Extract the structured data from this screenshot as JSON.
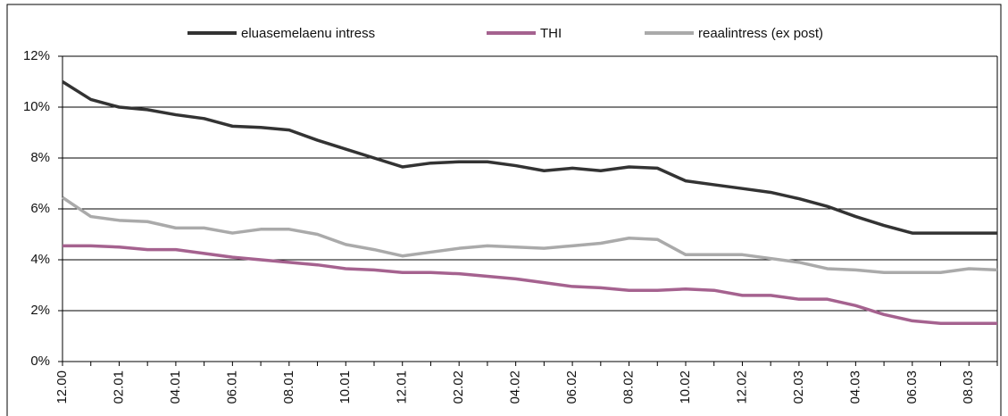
{
  "chart_data": {
    "type": "line",
    "categories": [
      "12.00",
      null,
      "02.01",
      null,
      "04.01",
      null,
      "06.01",
      null,
      "08.01",
      null,
      "10.01",
      null,
      "12.01",
      null,
      "02.02",
      null,
      "04.02",
      null,
      "06.02",
      null,
      "08.02",
      null,
      "10.02",
      null,
      "12.02",
      null,
      "02.03",
      null,
      "04.03",
      null,
      "06.03",
      null,
      "08.03",
      null
    ],
    "series": [
      {
        "name": "eluasemelaenu intress",
        "color": "#333333",
        "values": [
          11.0,
          10.3,
          10.0,
          9.9,
          9.7,
          9.55,
          9.25,
          9.2,
          9.1,
          8.7,
          8.35,
          8.0,
          7.65,
          7.8,
          7.85,
          7.85,
          7.7,
          7.5,
          7.6,
          7.5,
          7.65,
          7.6,
          7.1,
          6.95,
          6.8,
          6.65,
          6.4,
          6.1,
          5.7,
          5.35,
          5.05,
          5.05,
          5.05,
          5.05
        ]
      },
      {
        "name": "THI",
        "color": "#a5628f",
        "values": [
          4.55,
          4.55,
          4.5,
          4.4,
          4.4,
          4.25,
          4.1,
          4.0,
          3.9,
          3.8,
          3.65,
          3.6,
          3.5,
          3.5,
          3.45,
          3.35,
          3.25,
          3.1,
          2.95,
          2.9,
          2.8,
          2.8,
          2.85,
          2.8,
          2.6,
          2.6,
          2.45,
          2.45,
          2.2,
          1.85,
          1.6,
          1.5,
          1.5,
          1.5
        ]
      },
      {
        "name": "reaalintress (ex post)",
        "color": "#aaaaaa",
        "values": [
          6.45,
          5.7,
          5.55,
          5.5,
          5.25,
          5.25,
          5.05,
          5.2,
          5.2,
          5.0,
          4.6,
          4.4,
          4.15,
          4.3,
          4.45,
          4.55,
          4.5,
          4.45,
          4.55,
          4.65,
          4.85,
          4.8,
          4.2,
          4.2,
          4.2,
          4.05,
          3.9,
          3.65,
          3.6,
          3.5,
          3.5,
          3.5,
          3.65,
          3.6
        ]
      }
    ],
    "ylim": [
      0,
      12
    ],
    "yticks": [
      {
        "value": 0,
        "label": "0%"
      },
      {
        "value": 2,
        "label": "2%"
      },
      {
        "value": 4,
        "label": "4%"
      },
      {
        "value": 6,
        "label": "6%"
      },
      {
        "value": 8,
        "label": "8%"
      },
      {
        "value": 10,
        "label": "10%"
      },
      {
        "value": 12,
        "label": "12%"
      }
    ],
    "grid": true,
    "legend": "top"
  }
}
